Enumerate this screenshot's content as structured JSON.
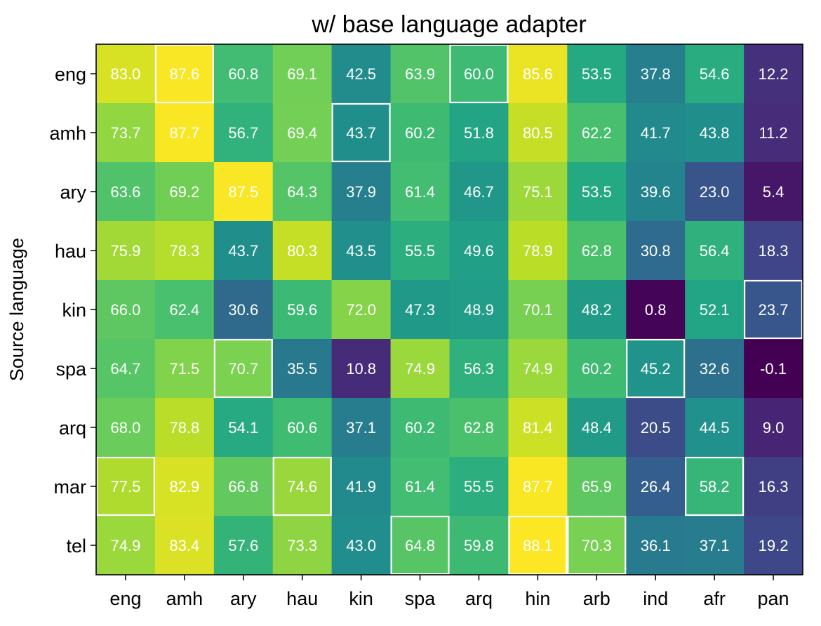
{
  "chart_data": {
    "type": "heatmap",
    "title": "w/ base language adapter",
    "xlabel": "",
    "ylabel": "Source language",
    "x_categories": [
      "eng",
      "amh",
      "ary",
      "hau",
      "kin",
      "spa",
      "arq",
      "hin",
      "arb",
      "ind",
      "afr",
      "pan"
    ],
    "y_categories": [
      "eng",
      "amh",
      "ary",
      "hau",
      "kin",
      "spa",
      "arq",
      "mar",
      "tel"
    ],
    "values": [
      [
        83.0,
        87.6,
        60.8,
        69.1,
        42.5,
        63.9,
        60.0,
        85.6,
        53.5,
        37.8,
        54.6,
        12.2
      ],
      [
        73.7,
        87.7,
        56.7,
        69.4,
        43.7,
        60.2,
        51.8,
        80.5,
        62.2,
        41.7,
        43.8,
        11.2
      ],
      [
        63.6,
        69.2,
        87.5,
        64.3,
        37.9,
        61.4,
        46.7,
        75.1,
        53.5,
        39.6,
        23.0,
        5.4
      ],
      [
        75.9,
        78.3,
        43.7,
        80.3,
        43.5,
        55.5,
        49.6,
        78.9,
        62.8,
        30.8,
        56.4,
        18.3
      ],
      [
        66.0,
        62.4,
        30.6,
        59.6,
        72.0,
        47.3,
        48.9,
        70.1,
        48.2,
        0.8,
        52.1,
        23.7
      ],
      [
        64.7,
        71.5,
        70.7,
        35.5,
        10.8,
        74.9,
        56.3,
        74.9,
        60.2,
        45.2,
        32.6,
        -0.1
      ],
      [
        68.0,
        78.8,
        54.1,
        60.6,
        37.1,
        60.2,
        62.8,
        81.4,
        48.4,
        20.5,
        44.5,
        9.0
      ],
      [
        77.5,
        82.9,
        66.8,
        74.6,
        41.9,
        61.4,
        55.5,
        87.7,
        65.9,
        26.4,
        58.2,
        16.3
      ],
      [
        74.9,
        83.4,
        57.6,
        73.3,
        43.0,
        64.8,
        59.8,
        88.1,
        70.3,
        36.1,
        37.1,
        19.2
      ]
    ],
    "highlighted_cells": [
      [
        0,
        1
      ],
      [
        0,
        6
      ],
      [
        1,
        4
      ],
      [
        4,
        11
      ],
      [
        5,
        2
      ],
      [
        5,
        9
      ],
      [
        7,
        0
      ],
      [
        7,
        3
      ],
      [
        7,
        10
      ],
      [
        8,
        5
      ],
      [
        8,
        7
      ],
      [
        8,
        8
      ]
    ],
    "colormap": "viridis",
    "value_range": [
      -0.1,
      88.1
    ],
    "highlight_color": "#ffffff"
  }
}
